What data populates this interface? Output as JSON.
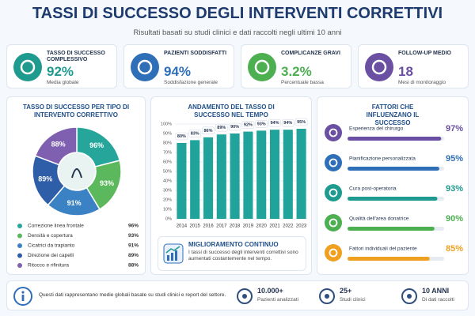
{
  "header": {
    "title": "TASSI DI SUCCESSO DEGLI INTERVENTI CORRETTIVI",
    "subtitle": "Risultati basati su studi clinici e dati raccolti negli ultimi 10 anni"
  },
  "kpis": [
    {
      "label": "TASSO DI SUCCESSO COMPLESSIVO",
      "value": "92%",
      "note": "Media globale",
      "color": "#1f9a8f"
    },
    {
      "label": "PAZIENTI SODDISFATTI",
      "value": "94%",
      "note": "Soddisfazione generale",
      "color": "#2f6fb8"
    },
    {
      "label": "COMPLICANZE GRAVI",
      "value": "3.2%",
      "note": "Percentuale bassa",
      "color": "#4caf50"
    },
    {
      "label": "FOLLOW-UP MEDIO",
      "value": "18",
      "note": "Mesi di monitoraggio",
      "color": "#6a4fa3"
    }
  ],
  "chart_data": [
    {
      "type": "pie",
      "title": "TASSO DI SUCCESSO PER TIPO DI INTERVENTO CORRETTIVO",
      "categories": [
        "Correzione linea frontale",
        "Densità e copertura",
        "Cicatrici da trapianto",
        "Direzione dei capelli",
        "Ritocco e rifinitura"
      ],
      "values": [
        96,
        93,
        91,
        89,
        88
      ],
      "value_labels": [
        "96%",
        "93%",
        "91%",
        "89%",
        "88%"
      ],
      "colors": [
        "#26a69a",
        "#5cb85c",
        "#3b82c4",
        "#2f5ea8",
        "#7e5fb0"
      ]
    },
    {
      "type": "bar",
      "title": "ANDAMENTO DEL TASSO DI SUCCESSO NEL TEMPO",
      "categories": [
        "2014",
        "2015",
        "2016",
        "2017",
        "2018",
        "2019",
        "2020",
        "2021",
        "2022",
        "2023"
      ],
      "values": [
        80,
        83,
        86,
        89,
        90,
        92,
        93,
        94,
        94,
        95
      ],
      "value_labels": [
        "80%",
        "83%",
        "86%",
        "89%",
        "90%",
        "92%",
        "93%",
        "94%",
        "94%",
        "95%"
      ],
      "color": "#1fa39a",
      "ylim": [
        0,
        100
      ],
      "yticks": [
        {
          "value": 0,
          "label": "0%"
        },
        {
          "value": 10,
          "label": "10%"
        },
        {
          "value": 20,
          "label": "20%"
        },
        {
          "value": 30,
          "label": "30%"
        },
        {
          "value": 40,
          "label": "40%"
        },
        {
          "value": 50,
          "label": "50%"
        },
        {
          "value": 60,
          "label": "60%"
        },
        {
          "value": 70,
          "label": "70%"
        },
        {
          "value": 80,
          "label": "80%"
        },
        {
          "value": 90,
          "label": "90%"
        },
        {
          "value": 100,
          "label": "100%"
        }
      ],
      "grid": true,
      "annotation": {
        "title": "MIGLIORAMENTO CONTINUO",
        "text": "I tassi di successo degli interventi correttivi sono aumentati costantemente nel tempo."
      }
    },
    {
      "type": "bar",
      "orientation": "horizontal",
      "title": "FATTORI CHE INFLUENZANO IL SUCCESSO",
      "categories": [
        "Esperienza del chirurgo",
        "Pianificazione personalizzata",
        "Cura post-operatoria",
        "Qualità dell'area donatrice",
        "Fattori individuali del paziente"
      ],
      "values": [
        97,
        95,
        93,
        90,
        85
      ],
      "value_labels": [
        "97%",
        "95%",
        "93%",
        "90%",
        "85%"
      ],
      "colors": [
        "#6a4fa3",
        "#2f6fb8",
        "#1f9a8f",
        "#4caf50",
        "#f0a020"
      ],
      "xlim": [
        0,
        100
      ]
    }
  ],
  "footer": {
    "note": "Questi dati rappresentano medie globali basate su studi clinici e report del settore.",
    "stats": [
      {
        "value": "10.000+",
        "label": "Pazienti analizzati"
      },
      {
        "value": "25+",
        "label": "Studi clinici"
      },
      {
        "value": "10 ANNI",
        "label": "Di dati raccolti"
      }
    ]
  }
}
